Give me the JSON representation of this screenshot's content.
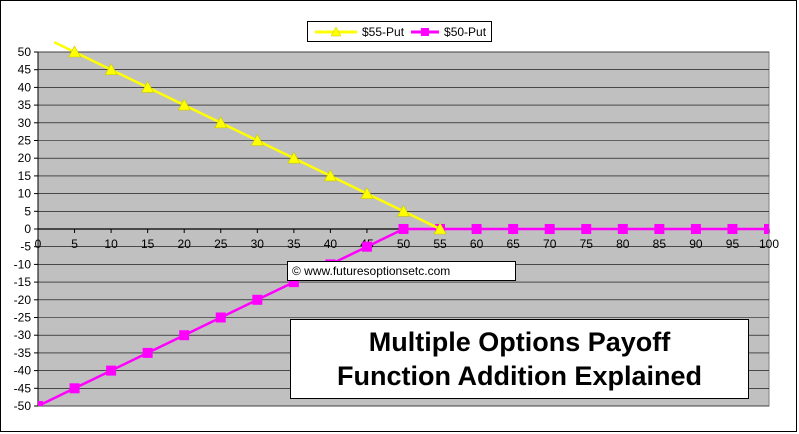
{
  "chart_data": {
    "type": "line",
    "title": "",
    "xlabel": "",
    "ylabel": "",
    "x": [
      0,
      5,
      10,
      15,
      20,
      25,
      30,
      35,
      40,
      45,
      50,
      55,
      60,
      65,
      70,
      75,
      80,
      85,
      90,
      95,
      100
    ],
    "xlim": [
      0,
      100
    ],
    "ylim": [
      -50,
      50
    ],
    "y_ticks": [
      50,
      45,
      40,
      35,
      30,
      25,
      20,
      15,
      10,
      5,
      0,
      -5,
      -10,
      -15,
      -20,
      -25,
      -30,
      -35,
      -40,
      -45,
      -50
    ],
    "grid": true,
    "plot_background": "#C0C0C0",
    "legend_position": "top-center",
    "series": [
      {
        "name": "$55-Put",
        "color": "#FFFF00",
        "marker": "triangle",
        "points": [
          [
            5,
            50
          ],
          [
            10,
            45
          ],
          [
            15,
            40
          ],
          [
            20,
            35
          ],
          [
            25,
            30
          ],
          [
            30,
            25
          ],
          [
            35,
            20
          ],
          [
            40,
            15
          ],
          [
            45,
            10
          ],
          [
            50,
            5
          ],
          [
            55,
            0
          ]
        ]
      },
      {
        "name": "$50-Put",
        "color": "#FF00FF",
        "marker": "square",
        "points": [
          [
            0,
            -50
          ],
          [
            5,
            -45
          ],
          [
            10,
            -40
          ],
          [
            15,
            -35
          ],
          [
            20,
            -30
          ],
          [
            25,
            -25
          ],
          [
            30,
            -20
          ],
          [
            35,
            -15
          ],
          [
            40,
            -10
          ],
          [
            45,
            -5
          ],
          [
            50,
            0
          ],
          [
            55,
            0
          ],
          [
            60,
            0
          ],
          [
            65,
            0
          ],
          [
            70,
            0
          ],
          [
            75,
            0
          ],
          [
            80,
            0
          ],
          [
            85,
            0
          ],
          [
            90,
            0
          ],
          [
            95,
            0
          ],
          [
            100,
            0
          ]
        ]
      }
    ]
  },
  "watermark": "© www.futuresoptionsetc.com",
  "annotation_title": {
    "line1": "Multiple Options Payoff",
    "line2": "Function Addition Explained"
  }
}
